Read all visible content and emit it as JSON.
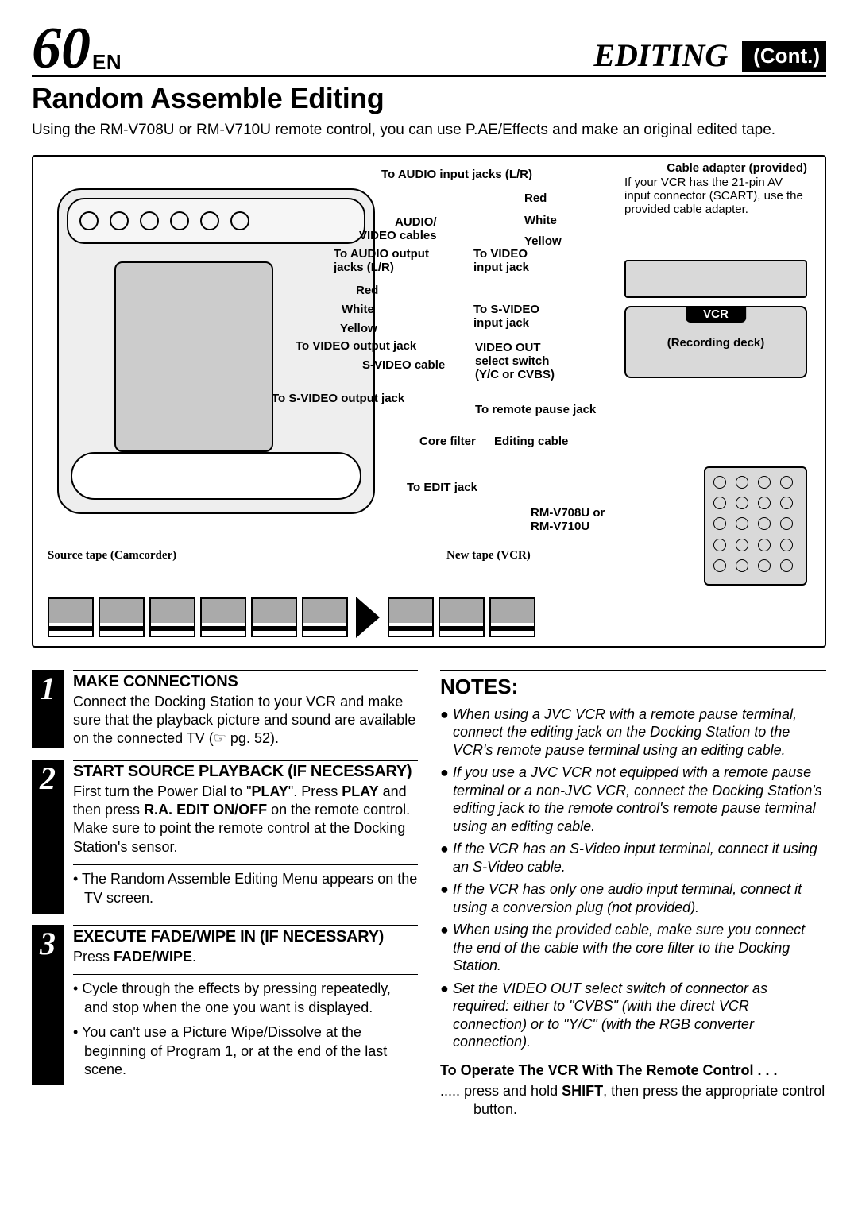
{
  "header": {
    "page_number": "60",
    "lang": "EN",
    "chapter": "EDITING",
    "cont": "(Cont.)"
  },
  "section_title": "Random Assemble Editing",
  "intro": "Using the RM-V708U or RM-V710U remote control, you can use P.AE/Effects and make an original edited tape.",
  "diagram": {
    "labels": {
      "audio_in": "To AUDIO input jacks (L/R)",
      "red": "Red",
      "white": "White",
      "yellow": "Yellow",
      "av_cables": "AUDIO/\nVIDEO cables",
      "audio_out": "To AUDIO output\njacks (L/R)",
      "video_in": "To VIDEO\ninput jack",
      "svideo_in": "To S-VIDEO\ninput jack",
      "video_out_jack": "To VIDEO output jack",
      "svideo_cable": "S-VIDEO cable",
      "svideo_out": "To S-VIDEO output jack",
      "video_out_switch": "VIDEO OUT\nselect switch\n(Y/C or CVBS)",
      "remote_pause": "To remote pause jack",
      "core_filter": "Core filter",
      "editing_cable": "Editing cable",
      "edit_jack": "To EDIT jack",
      "remote_model": "RM-V708U or\nRM-V710U",
      "source": "Source tape (Camcorder)",
      "new_tape": "New tape (VCR)",
      "cable_adapter_title": "Cable adapter (provided)",
      "cable_adapter_text": "If your VCR has the 21-pin AV input connector (SCART), use the provided cable adapter.",
      "vcr_title": "VCR",
      "vcr_sub": "(Recording deck)"
    }
  },
  "steps": [
    {
      "num": "1",
      "title": "MAKE CONNECTIONS",
      "text": "Connect the Docking Station to your VCR and make sure that the playback picture and sound are available on the connected TV (☞ pg. 52).",
      "subs": []
    },
    {
      "num": "2",
      "title": "START SOURCE PLAYBACK (IF NECESSARY)",
      "text": "First turn the Power Dial to \"PLAY\". Press PLAY and then press R.A. EDIT ON/OFF on the remote control. Make sure to point the remote control at the Docking Station's sensor.",
      "subs": [
        "The Random Assemble Editing Menu appears on the TV screen."
      ]
    },
    {
      "num": "3",
      "title": "EXECUTE FADE/WIPE IN (IF NECESSARY)",
      "text": "Press FADE/WIPE.",
      "subs": [
        "Cycle through the effects by pressing repeatedly, and stop when the one you want is displayed.",
        "You can't use a Picture Wipe/Dissolve at the beginning of Program 1, or at the end of the last scene."
      ]
    }
  ],
  "notes": {
    "heading": "NOTES:",
    "items": [
      "When using a JVC VCR with a remote pause terminal, connect the editing jack on the Docking Station to the VCR's remote pause terminal using an editing cable.",
      "If you use a JVC VCR not equipped with a remote pause terminal or a non-JVC VCR, connect the Docking Station's editing jack to the remote control's remote pause terminal using an editing cable.",
      "If the VCR has an S-Video input terminal, connect it using an S-Video cable.",
      "If the VCR has only one audio input terminal, connect it using a conversion plug (not provided).",
      "When using the provided cable, make sure you connect the end of the cable with the core filter to the Docking Station.",
      "Set the VIDEO OUT select switch of connector as required: either to \"CVBS\" (with the direct VCR connection) or to \"Y/C\" (with the RGB converter connection)."
    ],
    "operate_title": "To Operate The VCR With The Remote Control . . .",
    "operate_text": "..... press and hold SHIFT, then press the appropriate control button."
  }
}
